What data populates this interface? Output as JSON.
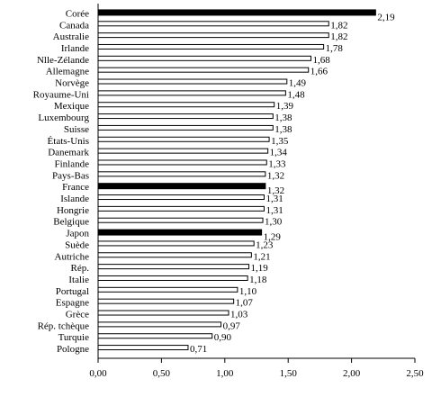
{
  "chart_data": {
    "type": "bar",
    "orientation": "horizontal",
    "categories": [
      "Corée",
      "Canada",
      "Australie",
      "Irlande",
      "Nlle-Zélande",
      "Allemagne",
      "Norvège",
      "Royaume-Uni",
      "Mexique",
      "Luxembourg",
      "Suisse",
      "États-Unis",
      "Danemark",
      "Finlande",
      "Pays-Bas",
      "France",
      "Islande",
      "Hongrie",
      "Belgique",
      "Japon",
      "Suède",
      "Autriche",
      "Rép.",
      "Italie",
      "Portugal",
      "Espagne",
      "Grèce",
      "Rép. tchèque",
      "Turquie",
      "Pologne"
    ],
    "values": [
      2.19,
      1.82,
      1.82,
      1.78,
      1.68,
      1.66,
      1.49,
      1.48,
      1.39,
      1.38,
      1.38,
      1.35,
      1.34,
      1.33,
      1.32,
      1.32,
      1.31,
      1.31,
      1.3,
      1.29,
      1.23,
      1.21,
      1.19,
      1.18,
      1.1,
      1.07,
      1.03,
      0.97,
      0.9,
      0.71
    ],
    "value_labels": [
      "2,19",
      "1,82",
      "1,82",
      "1,78",
      "1,68",
      "1,66",
      "1,49",
      "1,48",
      "1,39",
      "1,38",
      "1,38",
      "1,35",
      "1,34",
      "1,33",
      "1,32",
      "1,32",
      "1,31",
      "1,31",
      "1,30",
      "1,29",
      "1,23",
      "1,21",
      "1,19",
      "1,18",
      "1,10",
      "1,07",
      "1,03",
      "0,97",
      "0,90",
      "0,71"
    ],
    "highlighted": [
      "Corée",
      "France",
      "Japon"
    ],
    "xlim": [
      0,
      2.5
    ],
    "x_ticks": [
      0,
      0.5,
      1.0,
      1.5,
      2.0,
      2.5
    ],
    "x_tick_labels": [
      "0,00",
      "0,50",
      "1,00",
      "1,50",
      "2,00",
      "2,50"
    ],
    "title": "",
    "xlabel": "",
    "ylabel": "",
    "grid": false,
    "legend": "none",
    "colors": {
      "bar_fill": "#ffffff",
      "highlight_fill": "#000000",
      "stroke": "#000000"
    }
  }
}
